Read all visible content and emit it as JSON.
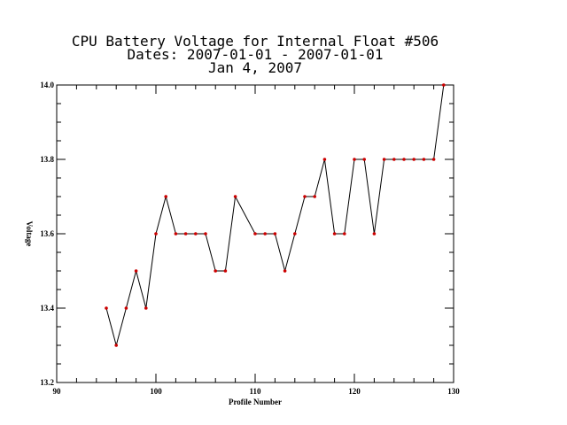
{
  "chart_data": {
    "type": "line",
    "title_lines": [
      "CPU Battery Voltage for Internal Float #506",
      "Dates:  2007-01-01 -  2007-01-01",
      "Jan  4, 2007"
    ],
    "xlabel": "Profile Number",
    "ylabel": "Voltage",
    "xlim": [
      90,
      130
    ],
    "ylim": [
      13.2,
      14.0
    ],
    "x_ticks": [
      "90",
      "100",
      "110",
      "120",
      "130"
    ],
    "y_ticks": [
      "13.2",
      "13.4",
      "13.6",
      "13.8",
      "14.0"
    ],
    "x_minor_step": 2,
    "y_minor_step": 0.05,
    "grid": false,
    "line_color": "#000000",
    "marker_color": "#cc0000",
    "series": [
      {
        "x": [
          95,
          96,
          97,
          98,
          99,
          100,
          101,
          102,
          103,
          104,
          105,
          106,
          107,
          108,
          110,
          111,
          112,
          113,
          114,
          115,
          116,
          117,
          118,
          119,
          120,
          121,
          122,
          123,
          124,
          125,
          126,
          127,
          128,
          129
        ],
        "y": [
          13.4,
          13.3,
          13.4,
          13.5,
          13.4,
          13.6,
          13.7,
          13.6,
          13.6,
          13.6,
          13.6,
          13.5,
          13.5,
          13.7,
          13.6,
          13.6,
          13.6,
          13.5,
          13.6,
          13.7,
          13.7,
          13.8,
          13.6,
          13.6,
          13.8,
          13.8,
          13.6,
          13.8,
          13.8,
          13.8,
          13.8,
          13.8,
          13.8,
          14.0
        ]
      }
    ]
  }
}
